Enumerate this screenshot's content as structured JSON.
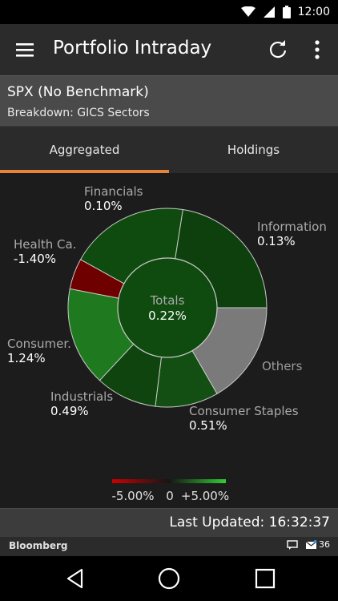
{
  "status_bar": {
    "time": "12:00",
    "icons": [
      "wifi-icon",
      "signal-icon",
      "battery-icon"
    ]
  },
  "app_bar": {
    "title": "Portfolio Intraday",
    "icons": [
      "menu-icon",
      "refresh-icon",
      "more-vert-icon"
    ]
  },
  "benchmark": {
    "name": "SPX (No Benchmark)",
    "breakdown": "Breakdown: GICS Sectors"
  },
  "tabs": [
    {
      "label": "Aggregated",
      "active": true
    },
    {
      "label": "Holdings",
      "active": false
    }
  ],
  "colors": {
    "accent": "#e8833a",
    "negative": "#cc0000",
    "positive": "#33cc33",
    "neutral": "#7a7a7a"
  },
  "chart_data": {
    "type": "pie",
    "center": {
      "label": "Totals",
      "value": "0.22%"
    },
    "segments": [
      {
        "name": "Financials",
        "value": "0.10%",
        "color": "#0f4a0f",
        "ring_color": "#0f4a0f"
      },
      {
        "name": "Information",
        "value": "0.13%",
        "color": "#0e400e",
        "ring_color": "#0e400e"
      },
      {
        "name": "Others",
        "value": "",
        "color": "#7a7a7a",
        "ring_color": "#7a7a7a"
      },
      {
        "name": "Consumer Staples",
        "value": "0.51%",
        "color": "#134f13",
        "ring_color": "#134f13"
      },
      {
        "name": "Industrials",
        "value": "0.49%",
        "color": "#0f440f",
        "ring_color": "#0f440f"
      },
      {
        "name": "Consumer.",
        "value": "1.24%",
        "color": "#1f7a1f",
        "ring_color": "#1b651b"
      },
      {
        "name": "Health Ca.",
        "value": "-1.40%",
        "color": "#6e0000",
        "ring_color": "#6e0000"
      }
    ],
    "scale": {
      "min_label": "-5.00%",
      "mid_label": "0",
      "max_label": "+5.00%",
      "min": -5,
      "max": 5
    }
  },
  "footer": {
    "last_updated": "Last Updated: 16:32:37"
  },
  "notification_bar": {
    "brand": "Bloomberg",
    "count": "36",
    "icons": [
      "message-icon",
      "mail-icon"
    ]
  },
  "nav_bar": {
    "icons": [
      "back-icon",
      "home-icon",
      "recents-icon"
    ]
  }
}
